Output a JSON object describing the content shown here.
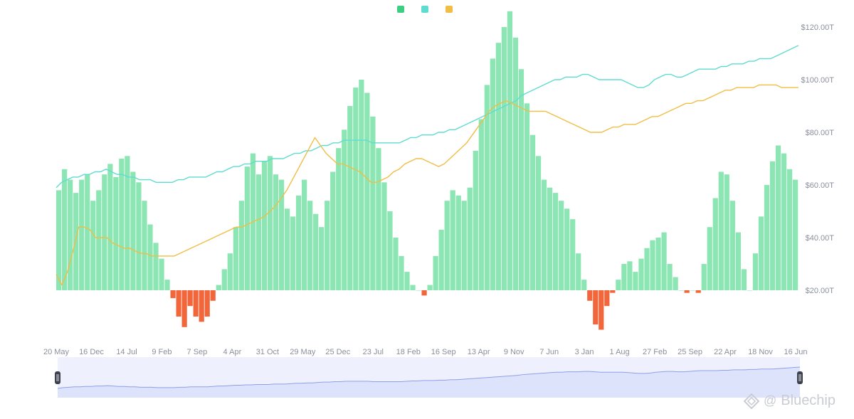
{
  "legend": {
    "items": [
      {
        "label": "",
        "color": "#3ccf7f"
      },
      {
        "label": "",
        "color": "#5fdcd2"
      },
      {
        "label": "",
        "color": "#f0bd45"
      }
    ]
  },
  "watermark": {
    "at": "@",
    "brand": "Bluechip"
  },
  "chart_data": {
    "type": "bar+line",
    "title": "",
    "xlabel": "",
    "ylabel_right": "",
    "x_tick_labels": [
      "20 May",
      "16 Dec",
      "14 Jul",
      "9 Feb",
      "7 Sep",
      "4 Apr",
      "31 Oct",
      "29 May",
      "25 Dec",
      "23 Jul",
      "18 Feb",
      "16 Sep",
      "13 Apr",
      "9 Nov",
      "7 Jun",
      "3 Jan",
      "1 Aug",
      "27 Feb",
      "25 Sep",
      "22 Apr",
      "18 Nov",
      "16 Jun"
    ],
    "right_axis": {
      "ticks": [
        "$120.00T",
        "$100.00T",
        "$80.00T",
        "$60.00T",
        "$40.00T",
        "$20.00T"
      ],
      "values": [
        120,
        100,
        80,
        60,
        40,
        20
      ],
      "ylim": [
        20,
        120
      ]
    },
    "left_axis": {
      "ylim": [
        -20,
        100
      ],
      "tick_labels_visible": false
    },
    "grid": false,
    "legend_position": "top-center",
    "series": [
      {
        "kind": "bar",
        "color_positive": "#8ce6b3",
        "color_negative": "#f2663c",
        "values": [
          38,
          46,
          42,
          37,
          42,
          44,
          34,
          38,
          44,
          48,
          43,
          50,
          51,
          45,
          41,
          34,
          25,
          18,
          12,
          4,
          -3,
          -10,
          -14,
          -6,
          -10,
          -12,
          -10,
          -4,
          2,
          8,
          14,
          24,
          34,
          47,
          52,
          44,
          49,
          51,
          44,
          42,
          31,
          28,
          36,
          42,
          34,
          29,
          24,
          34,
          45,
          54,
          61,
          70,
          77,
          80,
          75,
          66,
          54,
          41,
          30,
          20,
          13,
          7,
          2,
          0,
          -2,
          2,
          13,
          23,
          34,
          38,
          36,
          34,
          39,
          53,
          65,
          78,
          88,
          94,
          100,
          106,
          96,
          84,
          71,
          59,
          51,
          42,
          39,
          37,
          34,
          31,
          27,
          14,
          4,
          -4,
          -13,
          -15,
          -6,
          -1,
          4,
          10,
          11,
          7,
          12,
          16,
          19,
          20,
          22,
          10,
          5,
          0,
          -1,
          0,
          -1,
          10,
          24,
          35,
          45,
          44,
          34,
          22,
          8,
          0,
          14,
          28,
          40,
          49,
          55,
          52,
          46,
          42
        ]
      },
      {
        "kind": "line",
        "color": "#5fdcd2",
        "values": [
          59,
          61,
          62,
          63,
          63,
          64,
          64,
          65,
          65,
          66,
          65,
          64,
          64,
          63,
          63,
          62,
          62,
          62,
          61,
          61,
          61,
          61,
          62,
          62,
          63,
          63,
          63,
          63,
          64,
          65,
          65,
          66,
          67,
          67,
          68,
          68,
          69,
          69,
          69,
          70,
          70,
          70,
          71,
          72,
          72,
          73,
          73,
          74,
          75,
          75,
          76,
          76,
          77,
          77,
          77,
          77,
          77,
          76,
          76,
          76,
          76,
          76,
          76,
          77,
          78,
          78,
          79,
          79,
          79,
          80,
          80,
          81,
          81,
          82,
          83,
          84,
          85,
          86,
          87,
          88,
          89,
          90,
          91,
          92,
          94,
          95,
          96,
          97,
          98,
          99,
          100,
          100,
          101,
          101,
          101,
          102,
          102,
          101,
          100,
          100,
          100,
          100,
          100,
          99,
          98,
          97,
          97,
          98,
          100,
          101,
          102,
          102,
          101,
          101,
          102,
          103,
          104,
          104,
          104,
          104,
          105,
          105,
          106,
          106,
          106,
          107,
          107,
          108,
          108,
          108,
          109,
          110,
          111,
          112,
          113
        ]
      },
      {
        "kind": "line",
        "color": "#f0bd45",
        "values": [
          26,
          22,
          27,
          35,
          44,
          44,
          43,
          40,
          40,
          40,
          38,
          37,
          36,
          36,
          35,
          34,
          34,
          33,
          33,
          33,
          33,
          33,
          34,
          35,
          36,
          37,
          38,
          39,
          40,
          41,
          42,
          43,
          44,
          44,
          45,
          46,
          47,
          48,
          50,
          52,
          55,
          58,
          62,
          66,
          70,
          74,
          78,
          75,
          72,
          70,
          68,
          68,
          67,
          66,
          65,
          63,
          61,
          61,
          62,
          63,
          65,
          66,
          68,
          69,
          70,
          70,
          69,
          68,
          67,
          68,
          70,
          72,
          74,
          76,
          79,
          82,
          85,
          88,
          90,
          91,
          92,
          91,
          90,
          89,
          88,
          88,
          88,
          88,
          87,
          86,
          85,
          84,
          83,
          82,
          81,
          80,
          80,
          80,
          81,
          82,
          82,
          83,
          83,
          83,
          84,
          85,
          86,
          86,
          87,
          88,
          89,
          90,
          91,
          91,
          92,
          92,
          93,
          94,
          95,
          96,
          96,
          97,
          97,
          97,
          97,
          98,
          98,
          98,
          98,
          97,
          97,
          97,
          97
        ]
      }
    ],
    "navigator": {
      "fill": "#dde3fb",
      "stroke": "#8fa0e8",
      "handle_color": "#3c4150"
    }
  }
}
